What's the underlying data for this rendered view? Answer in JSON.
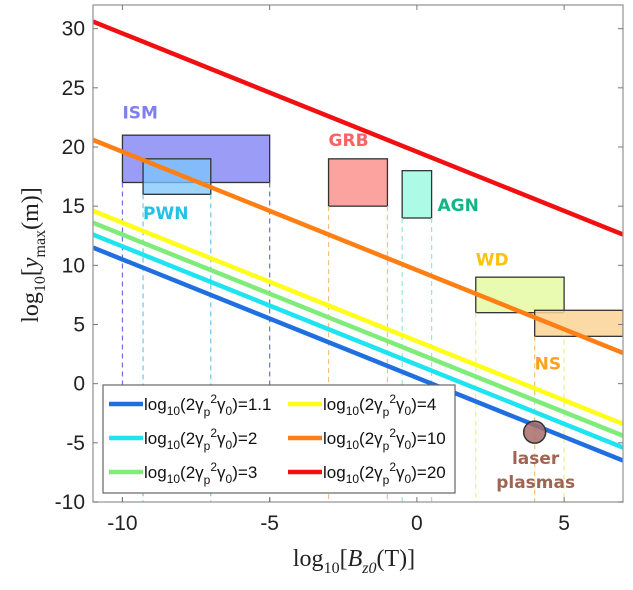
{
  "chart_data": {
    "type": "line",
    "title": "",
    "xlabel": "log10[Bz0(T)]",
    "ylabel": "log10[ymax(m)]",
    "xlabel_parts": {
      "main": "log",
      "sub": "10",
      "bracket_open": "[",
      "var": "B",
      "var_sub": "z0",
      "unit": "(T)]"
    },
    "ylabel_parts": {
      "main": "log",
      "sub": "10",
      "bracket_open": "[",
      "var": "y",
      "var_sub": "max",
      "unit": "(m)]"
    },
    "xlim": [
      -11,
      7
    ],
    "ylim": [
      -10,
      32
    ],
    "xticks": [
      -10,
      -5,
      0,
      5
    ],
    "yticks": [
      -10,
      -5,
      0,
      5,
      10,
      15,
      20,
      25,
      30
    ],
    "grid": false,
    "legend_position": "bottom-left",
    "series": [
      {
        "name": "log10(2γp²γ0)=1.1",
        "value_label": "1.1",
        "color": "#1f6fe0",
        "x": [
          -11,
          7
        ],
        "y": [
          11.5,
          -6.5
        ]
      },
      {
        "name": "log10(2γp²γ0)=2",
        "value_label": "2",
        "color": "#1ee3f0",
        "x": [
          -11,
          7
        ],
        "y": [
          12.6,
          -5.4
        ]
      },
      {
        "name": "log10(2γp²γ0)=3",
        "value_label": "3",
        "color": "#7fec7a",
        "x": [
          -11,
          7
        ],
        "y": [
          13.6,
          -4.4
        ]
      },
      {
        "name": "log10(2γp²γ0)=4",
        "value_label": "4",
        "color": "#ffff1a",
        "x": [
          -11,
          7
        ],
        "y": [
          14.6,
          -3.4
        ]
      },
      {
        "name": "log10(2γp²γ0)=10",
        "value_label": "10",
        "color": "#ff7f14",
        "x": [
          -11,
          7
        ],
        "y": [
          20.6,
          2.6
        ]
      },
      {
        "name": "log10(2γp²γ0)=20",
        "value_label": "20",
        "color": "#f20f12",
        "x": [
          -11,
          7
        ],
        "y": [
          30.6,
          12.6
        ]
      }
    ],
    "regions": [
      {
        "name": "ISM",
        "x": [
          -10,
          -5
        ],
        "y": [
          17,
          21
        ],
        "fill": "#9a9cf5",
        "label_color": "#7f7ff2",
        "line_color": "#6a6ee0",
        "label_x": -10,
        "label_y": 22.4,
        "label_anchor": "start"
      },
      {
        "name": "PWN",
        "x": [
          -9.3,
          -7
        ],
        "y": [
          16,
          19
        ],
        "fill": "#7cc6fb",
        "fill_opacity": 0.75,
        "label_color": "#22c1e6",
        "line_color": "#6ac6f0",
        "label_x": -9.3,
        "label_y": 13.9,
        "label_anchor": "start"
      },
      {
        "name": "GRB",
        "x": [
          -3,
          -1
        ],
        "y": [
          15,
          19
        ],
        "fill": "#fca3a0",
        "label_color": "#f86363",
        "line_color": "#f7c07a",
        "label_x": -3,
        "label_y": 20.1,
        "label_anchor": "start"
      },
      {
        "name": "AGN",
        "x": [
          -0.5,
          0.5
        ],
        "y": [
          14,
          18
        ],
        "fill": "#adfbe6",
        "label_color": "#14b487",
        "line_color": "#8ee8dc",
        "label_x": 0.7,
        "label_y": 14.6,
        "label_anchor": "start"
      },
      {
        "name": "WD",
        "x": [
          2,
          5
        ],
        "y": [
          6,
          9
        ],
        "fill": "#e5fba8",
        "fill_opacity": 0.9,
        "label_color": "#fbc20e",
        "line_color": "#e6ef8a",
        "label_x": 2,
        "label_y": 10.0,
        "label_anchor": "start"
      },
      {
        "name": "NS",
        "x": [
          4,
          8
        ],
        "y": [
          4,
          6.2
        ],
        "fill": "#fcd495",
        "fill_opacity": 0.85,
        "label_color": "#fba21f",
        "line_color": "#f7c07a",
        "label_x": 4,
        "label_y": 1.2,
        "label_anchor": "start"
      }
    ],
    "points": [
      {
        "name": "laser plasmas",
        "label_lines": [
          "laser",
          "plasmas"
        ],
        "x": 4,
        "y": -4.1,
        "fill": "#a86c6a",
        "label_color": "#a06454"
      }
    ]
  }
}
